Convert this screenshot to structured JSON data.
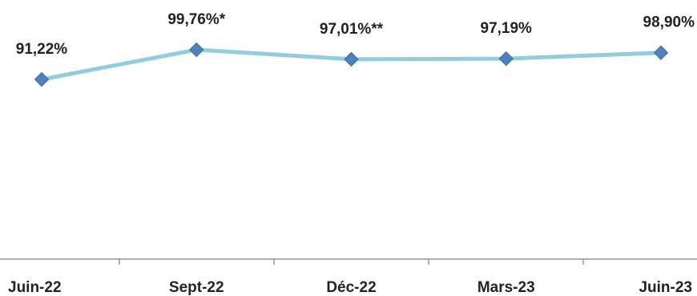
{
  "chart_data": {
    "type": "line",
    "categories": [
      "Juin-22",
      "Sept-22",
      "Déc-22",
      "Mars-23",
      "Juin-23"
    ],
    "series": [
      {
        "values": [
          91.22,
          99.76,
          97.01,
          97.19,
          98.9
        ],
        "data_labels": [
          "91,22%",
          "99,76%*",
          "97,01%**",
          "97,19%",
          "98,90%"
        ]
      }
    ],
    "title": "",
    "xlabel": "",
    "ylabel": "",
    "ylim": [
      0,
      100
    ],
    "y_axis_visible": false,
    "grid": false,
    "legend": "none",
    "colors": {
      "line": "#92CDDC",
      "marker": "#4F81BD",
      "axis": "#7F7F7F",
      "text": "#222222"
    },
    "marker_shape": "diamond"
  }
}
